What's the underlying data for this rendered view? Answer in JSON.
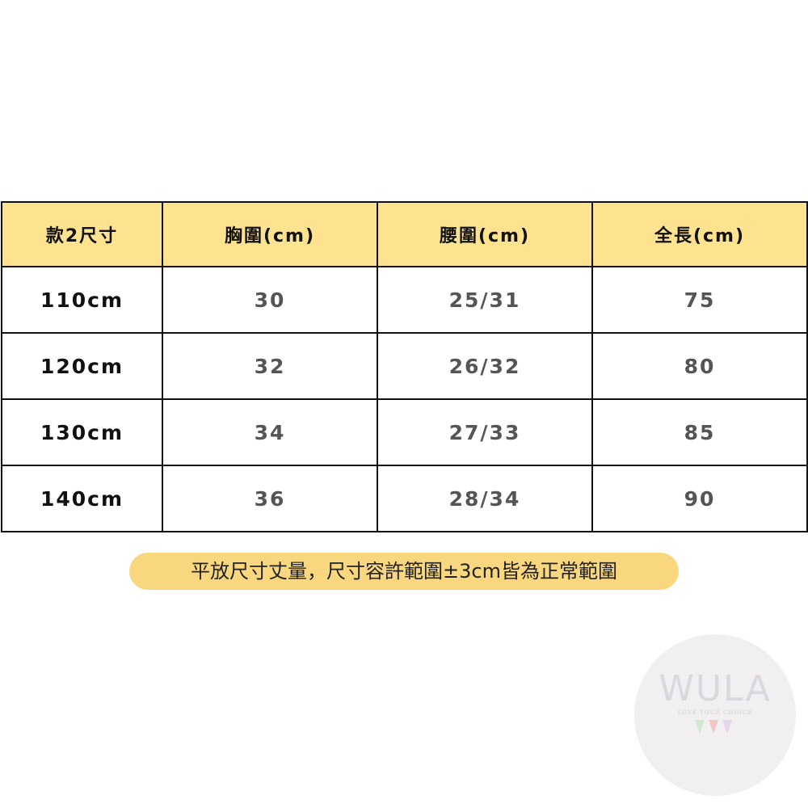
{
  "table": {
    "header": [
      "款2尺寸",
      "胸圍(cm)",
      "腰圍(cm)",
      "全長(cm)"
    ],
    "rows": [
      [
        "110cm",
        "30",
        "25/31",
        "75"
      ],
      [
        "120cm",
        "32",
        "26/32",
        "80"
      ],
      [
        "130cm",
        "34",
        "27/33",
        "85"
      ],
      [
        "140cm",
        "36",
        "28/34",
        "90"
      ]
    ]
  },
  "note": "平放尺寸丈量，尺寸容許範圍±3cm皆為正常範圍",
  "watermark": {
    "brand": "WULA",
    "tagline": "LOVE YOUR CHOICE"
  }
}
